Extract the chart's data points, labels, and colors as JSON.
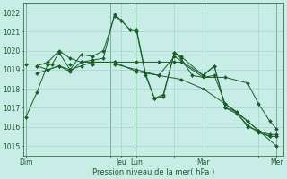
{
  "bg_color": "#c8ece6",
  "grid_color": "#a0d4cc",
  "line_color": "#1a5c2a",
  "xlabel": "Pression niveau de la mer( hPa )",
  "ylim": [
    1014.5,
    1022.5
  ],
  "yticks": [
    1015,
    1016,
    1017,
    1018,
    1019,
    1020,
    1021,
    1022
  ],
  "xlim": [
    -0.1,
    11.6
  ],
  "day_labels": [
    "Dim",
    "",
    "Jeu",
    "Lun",
    "",
    "Mar",
    "",
    "Mer"
  ],
  "day_positions": [
    0,
    3.8,
    4.3,
    5.0,
    6.7,
    8.0,
    10.5,
    11.3
  ],
  "vlines": [
    0,
    3.8,
    4.9,
    8.0,
    11.3
  ],
  "lines": [
    {
      "x": [
        0,
        0.5,
        1.0,
        1.2,
        1.5,
        2.0,
        2.5,
        3.0,
        3.5,
        4.0,
        4.3,
        4.7,
        5.0,
        5.4,
        5.8,
        6.2,
        6.7,
        7.0,
        7.5,
        8.0,
        8.5,
        9.0,
        9.5,
        10.0,
        10.5,
        11.0,
        11.3
      ],
      "y": [
        1016.5,
        1017.8,
        1019.3,
        1019.3,
        1019.9,
        1019.0,
        1019.8,
        1019.7,
        1020.0,
        1021.8,
        1021.6,
        1021.1,
        1021.1,
        1018.8,
        1017.5,
        1017.7,
        1019.9,
        1019.6,
        1018.7,
        1018.6,
        1018.7,
        1017.2,
        1016.8,
        1016.3,
        1015.8,
        1015.6,
        1015.6
      ]
    },
    {
      "x": [
        0,
        1.0,
        2.0,
        3.0,
        4.0,
        5.0,
        6.0,
        7.0,
        8.0,
        9.0,
        10.0,
        11.3
      ],
      "y": [
        1019.3,
        1019.3,
        1019.3,
        1019.3,
        1019.3,
        1019.0,
        1018.7,
        1018.5,
        1018.0,
        1017.2,
        1016.3,
        1015.0
      ]
    },
    {
      "x": [
        0.5,
        1.0,
        1.5,
        2.0,
        2.5,
        3.0,
        3.5,
        4.0,
        4.3,
        4.7,
        5.0,
        5.4,
        5.8,
        6.2,
        6.7,
        7.0,
        8.0,
        8.5,
        9.0,
        9.5,
        10.0,
        10.5,
        11.0,
        11.3
      ],
      "y": [
        1019.2,
        1019.0,
        1019.2,
        1018.9,
        1019.4,
        1019.5,
        1019.6,
        1021.9,
        1021.6,
        1021.1,
        1021.0,
        1018.7,
        1017.5,
        1017.6,
        1019.9,
        1019.7,
        1018.7,
        1019.2,
        1017.0,
        1016.8,
        1016.0,
        1015.8,
        1015.5,
        1015.5
      ]
    },
    {
      "x": [
        0.5,
        1.0,
        1.5,
        2.0,
        2.5,
        3.0,
        4.0,
        5.0,
        6.0,
        6.7,
        7.0,
        8.0,
        9.0,
        10.0,
        10.5,
        11.0,
        11.3
      ],
      "y": [
        1019.2,
        1019.4,
        1020.0,
        1019.6,
        1019.4,
        1019.4,
        1019.4,
        1019.4,
        1019.4,
        1019.4,
        1019.4,
        1018.6,
        1018.6,
        1018.3,
        1017.2,
        1016.3,
        1015.9
      ]
    },
    {
      "x": [
        0.5,
        1.0,
        1.5,
        2.0,
        2.5,
        3.0,
        4.0,
        5.0,
        6.0,
        6.7,
        8.0,
        8.5,
        9.0,
        9.5,
        10.0,
        10.5,
        11.0,
        11.3
      ],
      "y": [
        1018.8,
        1019.0,
        1019.2,
        1019.0,
        1019.2,
        1019.4,
        1019.4,
        1018.9,
        1018.7,
        1019.7,
        1018.7,
        1019.2,
        1017.0,
        1016.7,
        1016.1,
        1015.7,
        1015.5,
        1015.5
      ]
    }
  ]
}
